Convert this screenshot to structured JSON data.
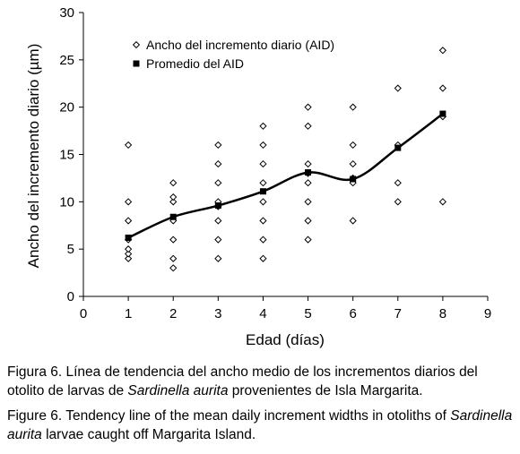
{
  "chart_data": {
    "type": "scatter",
    "xlabel": "Edad (días)",
    "ylabel": "Ancho del incremento diario (µm)",
    "xlim": [
      0,
      9
    ],
    "ylim": [
      0,
      30
    ],
    "xticks": [
      0,
      1,
      2,
      3,
      4,
      5,
      6,
      7,
      8,
      9
    ],
    "yticks": [
      0,
      5,
      10,
      15,
      20,
      25,
      30
    ],
    "grid": false,
    "legend_position": "top-left",
    "series": [
      {
        "name": "Ancho del incremento diario (AID)",
        "marker": "open-diamond",
        "points": [
          [
            1,
            4
          ],
          [
            1,
            4.5
          ],
          [
            1,
            5
          ],
          [
            1,
            6
          ],
          [
            1,
            8
          ],
          [
            1,
            10
          ],
          [
            1,
            16
          ],
          [
            2,
            3
          ],
          [
            2,
            4
          ],
          [
            2,
            6
          ],
          [
            2,
            8
          ],
          [
            2,
            10
          ],
          [
            2,
            10.5
          ],
          [
            2,
            12
          ],
          [
            3,
            4
          ],
          [
            3,
            6
          ],
          [
            3,
            8
          ],
          [
            3,
            9.5
          ],
          [
            3,
            10
          ],
          [
            3,
            12
          ],
          [
            3,
            14
          ],
          [
            3,
            16
          ],
          [
            4,
            4
          ],
          [
            4,
            6
          ],
          [
            4,
            8
          ],
          [
            4,
            10
          ],
          [
            4,
            12
          ],
          [
            4,
            14
          ],
          [
            4,
            16
          ],
          [
            4,
            18
          ],
          [
            5,
            6
          ],
          [
            5,
            8
          ],
          [
            5,
            10
          ],
          [
            5,
            12
          ],
          [
            5,
            13
          ],
          [
            5,
            14
          ],
          [
            5,
            18
          ],
          [
            5,
            20
          ],
          [
            6,
            8
          ],
          [
            6,
            12
          ],
          [
            6,
            12.5
          ],
          [
            6,
            14
          ],
          [
            6,
            16
          ],
          [
            6,
            20
          ],
          [
            7,
            10
          ],
          [
            7,
            12
          ],
          [
            7,
            16
          ],
          [
            7,
            22
          ],
          [
            8,
            10
          ],
          [
            8,
            19
          ],
          [
            8,
            22
          ],
          [
            8,
            26
          ]
        ]
      },
      {
        "name": "Promedio del AID",
        "marker": "filled-square",
        "line": "smooth",
        "points": [
          [
            1,
            6.2
          ],
          [
            2,
            8.4
          ],
          [
            3,
            9.6
          ],
          [
            4,
            11.1
          ],
          [
            5,
            13.1
          ],
          [
            6,
            12.4
          ],
          [
            7,
            15.7
          ],
          [
            8,
            19.3
          ]
        ]
      }
    ]
  },
  "caption_es": {
    "label": "Figura 6.",
    "text_before": " Línea de tendencia del ancho medio de los incrementos diarios del otolito de larvas de ",
    "species": "Sardinella aurita",
    "text_after": " provenientes de Isla Margarita."
  },
  "caption_en": {
    "label": "Figure 6.",
    "text_before": " Tendency line of the mean daily increment widths in otoliths of ",
    "species": "Sardinella aurita",
    "text_after": " larvae caught off Margarita Island."
  },
  "colors": {
    "ink": "#000000",
    "background": "#ffffff"
  }
}
